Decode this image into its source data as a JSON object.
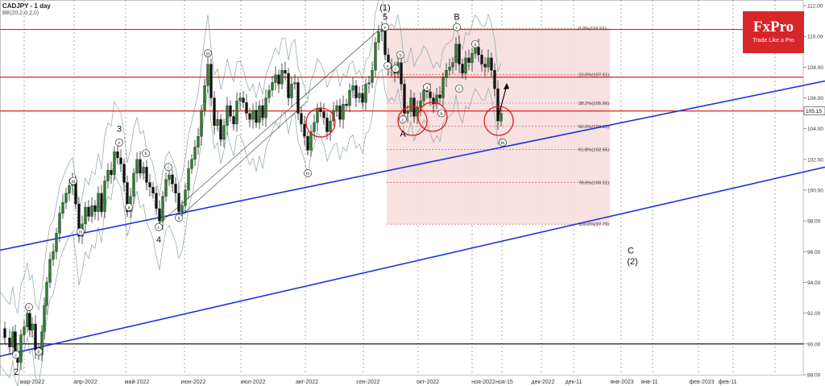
{
  "header": {
    "symbol": "CADJPY - 1 day",
    "indicator": "BB(20,2,0,2,0)"
  },
  "logo": {
    "brand": "FxPro",
    "tagline": "Trade Like a Pro"
  },
  "colors": {
    "up": "#2e7d32",
    "down": "#111111",
    "resistance": "#e02020",
    "channel": "#1f33d6",
    "fib_zone": "#f6dede",
    "bands": "#8aa5a5"
  },
  "chart_data": {
    "type": "candlestick",
    "title": "CADJPY - 1 day",
    "indicator": "Bollinger Bands BB(20,2,0,2,0)",
    "ylim": [
      88,
      112
    ],
    "yticks": [
      88,
      90,
      92,
      94,
      96,
      98,
      100,
      102,
      104,
      106,
      108,
      110,
      112
    ],
    "ytick_labels": [
      "88.00",
      "90.00",
      "92.00",
      "94.00",
      "96.00",
      "98.00",
      "100.00",
      "102.00",
      "104.00",
      "106.00",
      "108.00",
      "110.00",
      "112.00"
    ],
    "xtick_labels": [
      "мар-2022",
      "апр-2022",
      "май-2022",
      "июн-2022",
      "июл-2022",
      "авг-2022",
      "сен-2022",
      "окт-2022",
      "ноя-2022",
      "ноя-15",
      "дек-2022",
      "дек-11",
      "янв-2023",
      "янв-11",
      "фев-2023",
      "фев-11"
    ],
    "current_price": "105.15",
    "price_path": [
      [
        0,
        91.0
      ],
      [
        6,
        90.4
      ],
      [
        12,
        89.8
      ],
      [
        16,
        90.8
      ],
      [
        19,
        89.4
      ],
      [
        22,
        88.8
      ],
      [
        26,
        90.6
      ],
      [
        30,
        91.1
      ],
      [
        34,
        92.0
      ],
      [
        37,
        90.9
      ],
      [
        40,
        91.3
      ],
      [
        44,
        89.6
      ],
      [
        48,
        89.3
      ],
      [
        52,
        90.8
      ],
      [
        55,
        92.5
      ],
      [
        58,
        94.0
      ],
      [
        62,
        95.5
      ],
      [
        66,
        96.0
      ],
      [
        70,
        97.2
      ],
      [
        74,
        98.5
      ],
      [
        78,
        99.2
      ],
      [
        82,
        99.8
      ],
      [
        86,
        100.3
      ],
      [
        90,
        100.6
      ],
      [
        94,
        99.1
      ],
      [
        98,
        97.0
      ],
      [
        102,
        97.8
      ],
      [
        106,
        98.9
      ],
      [
        110,
        98.3
      ],
      [
        114,
        99.0
      ],
      [
        118,
        98.6
      ],
      [
        122,
        99.8
      ],
      [
        126,
        98.6
      ],
      [
        130,
        100.6
      ],
      [
        134,
        101.3
      ],
      [
        138,
        101.0
      ],
      [
        142,
        102.5
      ],
      [
        146,
        102.1
      ],
      [
        150,
        101.7
      ],
      [
        154,
        100.5
      ],
      [
        158,
        98.6
      ],
      [
        162,
        99.6
      ],
      [
        166,
        101.1
      ],
      [
        170,
        102.0
      ],
      [
        174,
        101.1
      ],
      [
        178,
        101.5
      ],
      [
        182,
        100.5
      ],
      [
        186,
        100.2
      ],
      [
        190,
        99.8
      ],
      [
        194,
        98.8
      ],
      [
        198,
        98.0
      ],
      [
        202,
        99.6
      ],
      [
        206,
        100.7
      ],
      [
        210,
        101.0
      ],
      [
        214,
        100.4
      ],
      [
        218,
        99.8
      ],
      [
        222,
        98.6
      ],
      [
        226,
        99.0
      ],
      [
        230,
        100.0
      ],
      [
        234,
        101.4
      ],
      [
        238,
        102.0
      ],
      [
        242,
        102.8
      ],
      [
        246,
        103.5
      ],
      [
        250,
        105.2
      ],
      [
        254,
        106.8
      ],
      [
        258,
        108.2
      ],
      [
        262,
        106.0
      ],
      [
        266,
        104.2
      ],
      [
        270,
        104.6
      ],
      [
        274,
        103.3
      ],
      [
        278,
        104.2
      ],
      [
        282,
        105.5
      ],
      [
        286,
        104.8
      ],
      [
        290,
        104.3
      ],
      [
        294,
        105.8
      ],
      [
        298,
        106.0
      ],
      [
        302,
        105.7
      ],
      [
        306,
        105.0
      ],
      [
        310,
        104.6
      ],
      [
        314,
        105.2
      ],
      [
        318,
        104.4
      ],
      [
        322,
        105.5
      ],
      [
        326,
        104.7
      ],
      [
        330,
        106.0
      ],
      [
        334,
        106.5
      ],
      [
        338,
        107.0
      ],
      [
        342,
        107.5
      ],
      [
        346,
        106.9
      ],
      [
        350,
        107.8
      ],
      [
        354,
        107.6
      ],
      [
        358,
        106.0
      ],
      [
        362,
        106.9
      ],
      [
        366,
        107.0
      ],
      [
        370,
        105.0
      ],
      [
        374,
        104.3
      ],
      [
        378,
        103.5
      ],
      [
        382,
        102.6
      ],
      [
        386,
        103.8
      ],
      [
        390,
        104.4
      ],
      [
        394,
        105.3
      ],
      [
        398,
        105.1
      ],
      [
        402,
        104.7
      ],
      [
        406,
        103.8
      ],
      [
        410,
        104.5
      ],
      [
        414,
        105.2
      ],
      [
        418,
        105.5
      ],
      [
        422,
        104.6
      ],
      [
        426,
        105.6
      ],
      [
        430,
        105.5
      ],
      [
        434,
        106.5
      ],
      [
        438,
        106.8
      ],
      [
        442,
        106.0
      ],
      [
        446,
        106.3
      ],
      [
        450,
        105.7
      ],
      [
        454,
        106.9
      ],
      [
        458,
        107.0
      ],
      [
        462,
        107.8
      ],
      [
        466,
        109.6
      ],
      [
        470,
        110.3
      ],
      [
        474,
        110.4
      ],
      [
        478,
        108.8
      ],
      [
        482,
        107.9
      ],
      [
        486,
        108.0
      ],
      [
        490,
        107.6
      ],
      [
        494,
        108.3
      ],
      [
        498,
        106.9
      ],
      [
        502,
        105.0
      ],
      [
        506,
        105.1
      ],
      [
        510,
        106.0
      ],
      [
        514,
        104.8
      ],
      [
        518,
        105.4
      ],
      [
        522,
        105.8
      ],
      [
        526,
        106.5
      ],
      [
        530,
        106.4
      ],
      [
        534,
        106.0
      ],
      [
        538,
        105.6
      ],
      [
        542,
        106.2
      ],
      [
        546,
        106.0
      ],
      [
        550,
        107.3
      ],
      [
        554,
        107.8
      ],
      [
        558,
        108.0
      ],
      [
        562,
        108.3
      ],
      [
        566,
        109.5
      ],
      [
        570,
        108.2
      ],
      [
        574,
        107.6
      ],
      [
        578,
        108.6
      ],
      [
        582,
        108.3
      ],
      [
        586,
        108.9
      ],
      [
        590,
        109.3
      ],
      [
        594,
        108.8
      ],
      [
        598,
        108.2
      ],
      [
        602,
        108.0
      ],
      [
        606,
        108.6
      ],
      [
        610,
        107.8
      ],
      [
        614,
        106.6
      ],
      [
        618,
        104.5
      ],
      [
        622,
        105.0
      ]
    ],
    "horizontal_levels": [
      {
        "price": 110.45,
        "color": "red"
      },
      {
        "price": 107.35,
        "color": "red"
      },
      {
        "price": 105.15,
        "color": "red"
      },
      {
        "price": 90.0,
        "color": "black"
      }
    ],
    "channel_lines": [
      {
        "from": [
          0,
          96.1
        ],
        "to": [
          1024,
          107.1
        ]
      },
      {
        "from": [
          0,
          89.2
        ],
        "to": [
          1024,
          101.5
        ]
      }
    ],
    "fib_zone": {
      "x_from": 480,
      "x_to": 757,
      "top": 110.52,
      "bottom": 97.79
    },
    "fib_levels": [
      {
        "pct": "0.0%",
        "price": 110.52,
        "label": "0.0%(110.52)"
      },
      {
        "pct": "23.6%",
        "price": 107.51,
        "label": "23.6%(107.51)"
      },
      {
        "pct": "38.2%",
        "price": 105.66,
        "label": "38.2%(105.66)"
      },
      {
        "pct": "50.0%",
        "price": 104.15,
        "label": "50.0%(104.15)"
      },
      {
        "pct": "61.8%",
        "price": 102.65,
        "label": "61.8%(102.65)"
      },
      {
        "pct": "78.6%",
        "price": 100.51,
        "label": "78.6%(100.51)"
      },
      {
        "pct": "100.0%",
        "price": 97.79,
        "label": "100.0%(97.79)"
      }
    ],
    "wave_labels": [
      {
        "text": "2",
        "x": 20,
        "price": 88.2,
        "circle": false
      },
      {
        "text": "c",
        "x": 20,
        "price": 89.3,
        "circle": true
      },
      {
        "text": "ii",
        "x": 48,
        "price": 89.5,
        "circle": true
      },
      {
        "text": "i",
        "x": 36,
        "price": 92.4,
        "circle": true
      },
      {
        "text": "iii",
        "x": 91,
        "price": 100.6,
        "circle": true
      },
      {
        "text": "iv",
        "x": 100,
        "price": 97.3,
        "circle": true
      },
      {
        "text": "3",
        "x": 148,
        "price": 104.0,
        "circle": false
      },
      {
        "text": "v",
        "x": 148,
        "price": 103.1,
        "circle": true
      },
      {
        "text": "b",
        "x": 181,
        "price": 102.4,
        "circle": true
      },
      {
        "text": "a",
        "x": 160,
        "price": 98.9,
        "circle": true
      },
      {
        "text": "c",
        "x": 197,
        "price": 97.6,
        "circle": true
      },
      {
        "text": "4",
        "x": 197,
        "price": 96.8,
        "circle": false
      },
      {
        "text": "i",
        "x": 209,
        "price": 101.5,
        "circle": true
      },
      {
        "text": "ii",
        "x": 222,
        "price": 98.2,
        "circle": true
      },
      {
        "text": "iii",
        "x": 258,
        "price": 108.9,
        "circle": true
      },
      {
        "text": "iv",
        "x": 382,
        "price": 101.1,
        "circle": true
      },
      {
        "text": "(1)",
        "x": 478,
        "price": 111.9,
        "circle": false
      },
      {
        "text": "5",
        "x": 478,
        "price": 111.3,
        "circle": false
      },
      {
        "text": "v",
        "x": 478,
        "price": 110.6,
        "circle": true
      },
      {
        "text": "a",
        "x": 481,
        "price": 108.1,
        "circle": true
      },
      {
        "text": "b",
        "x": 497,
        "price": 108.8,
        "circle": true
      },
      {
        "text": "c",
        "x": 491,
        "price": 107.9,
        "circle": true
      },
      {
        "text": "A",
        "x": 500,
        "price": 103.7,
        "circle": false
      },
      {
        "text": "c",
        "x": 500,
        "price": 104.6,
        "circle": true
      },
      {
        "text": "a",
        "x": 530,
        "price": 106.7,
        "circle": true
      },
      {
        "text": "b",
        "x": 548,
        "price": 105.0,
        "circle": true
      },
      {
        "text": "B",
        "x": 567,
        "price": 111.3,
        "circle": false
      },
      {
        "text": "c",
        "x": 567,
        "price": 110.6,
        "circle": true
      },
      {
        "text": "ii",
        "x": 590,
        "price": 109.5,
        "circle": true
      },
      {
        "text": "i",
        "x": 570,
        "price": 106.6,
        "circle": true
      },
      {
        "text": "iii",
        "x": 624,
        "price": 103.1,
        "circle": true
      },
      {
        "text": "C",
        "x": 783,
        "price": 96.1,
        "circle": false
      },
      {
        "text": "(2)",
        "x": 785,
        "price": 95.4,
        "circle": false
      }
    ],
    "grid": true,
    "legend": "none"
  }
}
